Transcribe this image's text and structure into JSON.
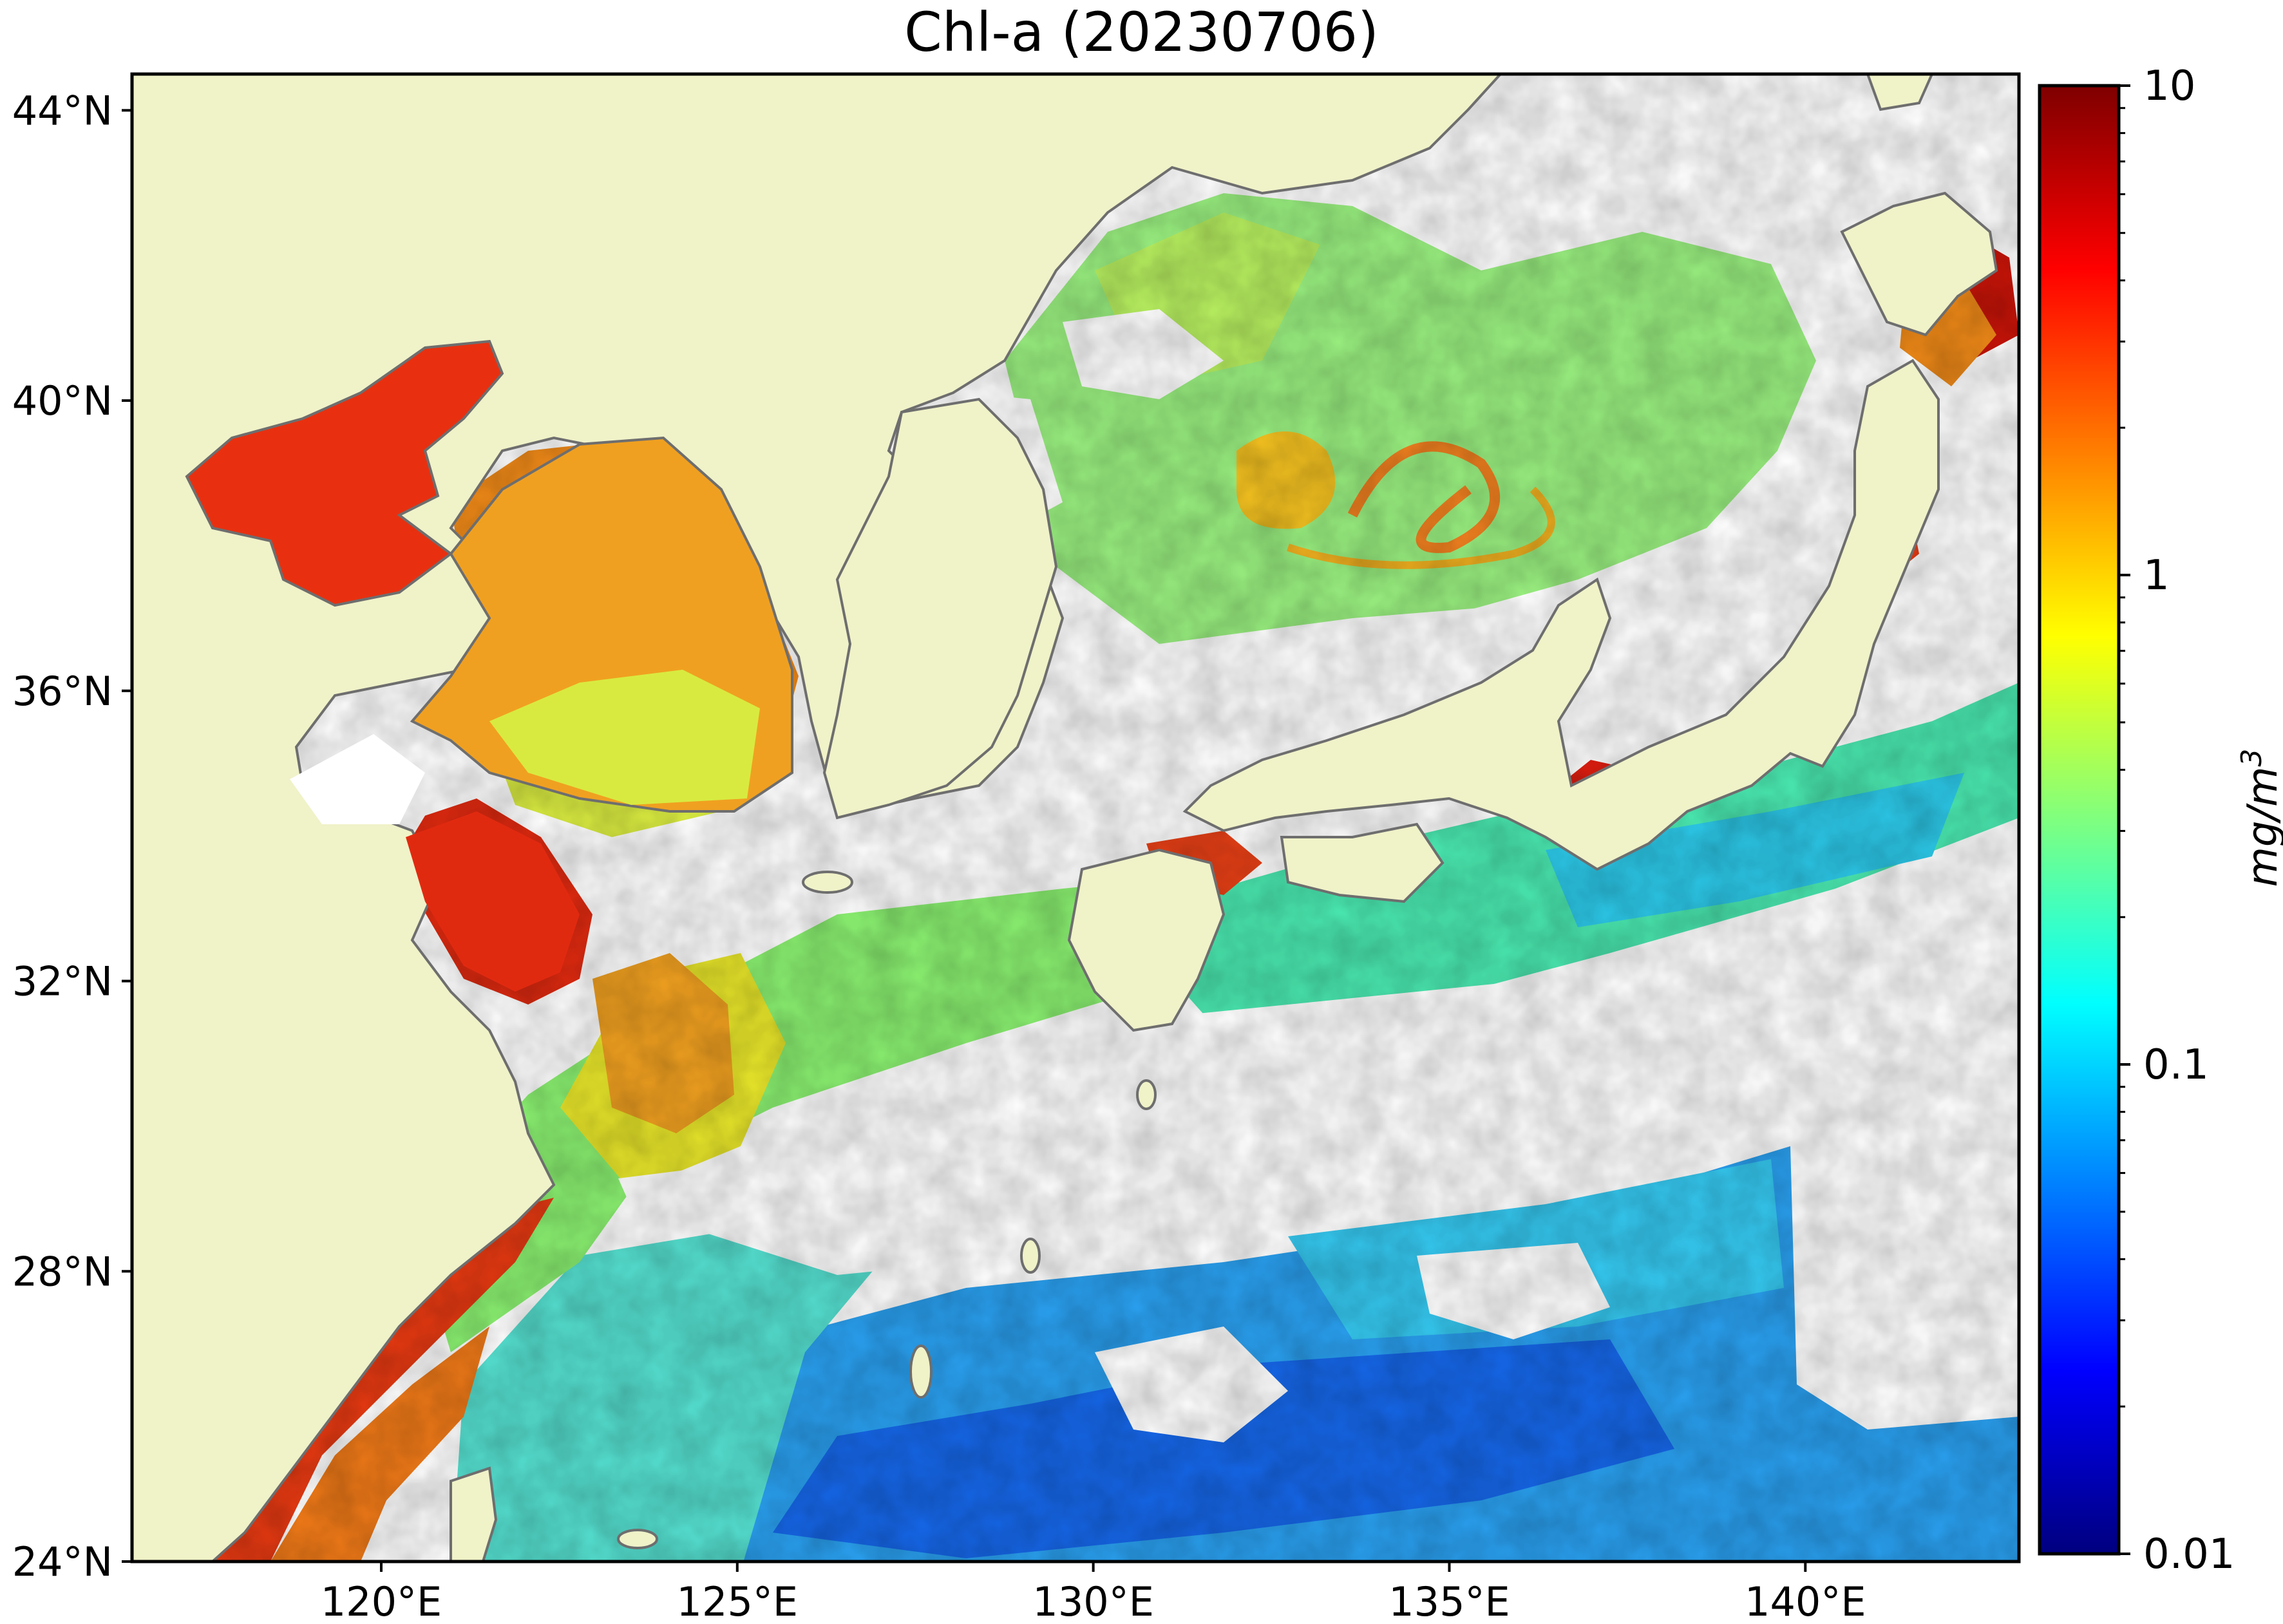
{
  "title": "Chl-a (20230706)",
  "map": {
    "lon_range": [
      116.5,
      143.0
    ],
    "lat_range": [
      24.0,
      44.5
    ],
    "lon_ticks": [
      {
        "value": 120,
        "label": "120°E"
      },
      {
        "value": 125,
        "label": "125°E"
      },
      {
        "value": 130,
        "label": "130°E"
      },
      {
        "value": 135,
        "label": "135°E"
      },
      {
        "value": 140,
        "label": "140°E"
      }
    ],
    "lat_ticks": [
      {
        "value": 24,
        "label": "24°N"
      },
      {
        "value": 28,
        "label": "28°N"
      },
      {
        "value": 32,
        "label": "32°N"
      },
      {
        "value": 36,
        "label": "36°N"
      },
      {
        "value": 40,
        "label": "40°N"
      },
      {
        "value": 44,
        "label": "44°N"
      }
    ],
    "colors": {
      "land": "#f0f2c8",
      "coastline": "#6e6e6e",
      "cloud_nodata": "#ffffff"
    }
  },
  "colorbar": {
    "scale": "log",
    "range": [
      0.01,
      10
    ],
    "unit": "mg/m",
    "unit_sup": "3",
    "ticks": [
      {
        "value": 10,
        "label": "10"
      },
      {
        "value": 1,
        "label": "1"
      },
      {
        "value": 0.1,
        "label": "0.1"
      },
      {
        "value": 0.01,
        "label": "0.01"
      }
    ],
    "colormap": [
      "#00007f",
      "#0000ff",
      "#007fff",
      "#00ffff",
      "#7fff7f",
      "#ffff00",
      "#ff7f00",
      "#ff0000",
      "#7f0000"
    ]
  }
}
